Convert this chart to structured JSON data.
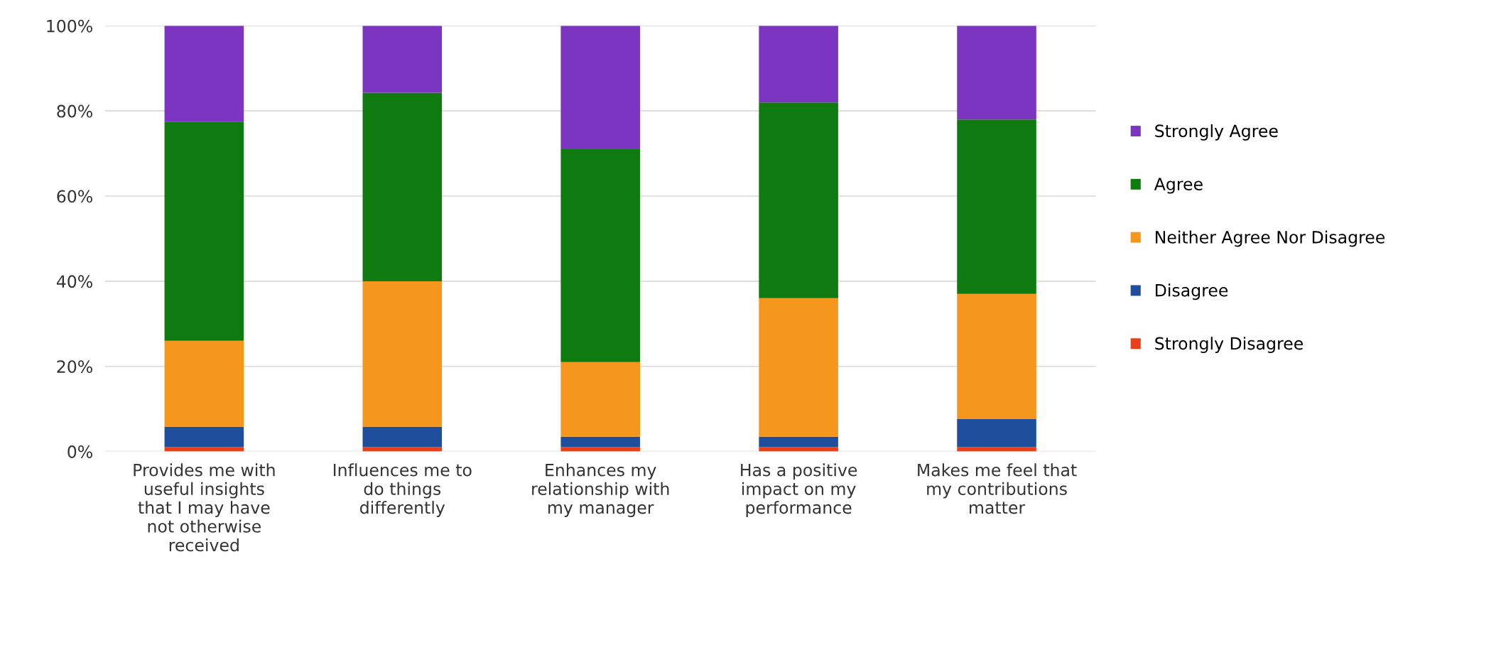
{
  "chart_data": {
    "type": "bar",
    "stacked": true,
    "categories": [
      "Provides me with useful insights that I may have not otherwise received",
      "Influences me to do things differently",
      "Enhances my relationship with my manager",
      "Has a positive impact on my performance",
      "Makes me feel that my contributions matter"
    ],
    "series": [
      {
        "name": "Strongly Disagree",
        "color": "#e8401c",
        "values": [
          1,
          1,
          1,
          1,
          1
        ]
      },
      {
        "name": "Disagree",
        "color": "#1f4e9c",
        "values": [
          4.8,
          4.8,
          2.5,
          2.5,
          6.6
        ]
      },
      {
        "name": "Neither Agree Nor Disagree",
        "color": "#f5961d",
        "values": [
          20.2,
          34.2,
          17.5,
          32.5,
          29.4
        ]
      },
      {
        "name": "Agree",
        "color": "#0f7a10",
        "values": [
          51.5,
          44.3,
          50,
          46,
          41
        ]
      },
      {
        "name": "Strongly Agree",
        "color": "#7b35c0",
        "values": [
          22.5,
          15.7,
          29,
          18,
          22
        ]
      }
    ],
    "ylim": [
      0,
      100
    ],
    "yticks": [
      {
        "value": 0,
        "label": "0%"
      },
      {
        "value": 20,
        "label": "20%"
      },
      {
        "value": 40,
        "label": "40%"
      },
      {
        "value": 60,
        "label": "60%"
      },
      {
        "value": 80,
        "label": "80%"
      },
      {
        "value": 100,
        "label": "100%"
      }
    ],
    "grid": "y",
    "legend": "right"
  }
}
